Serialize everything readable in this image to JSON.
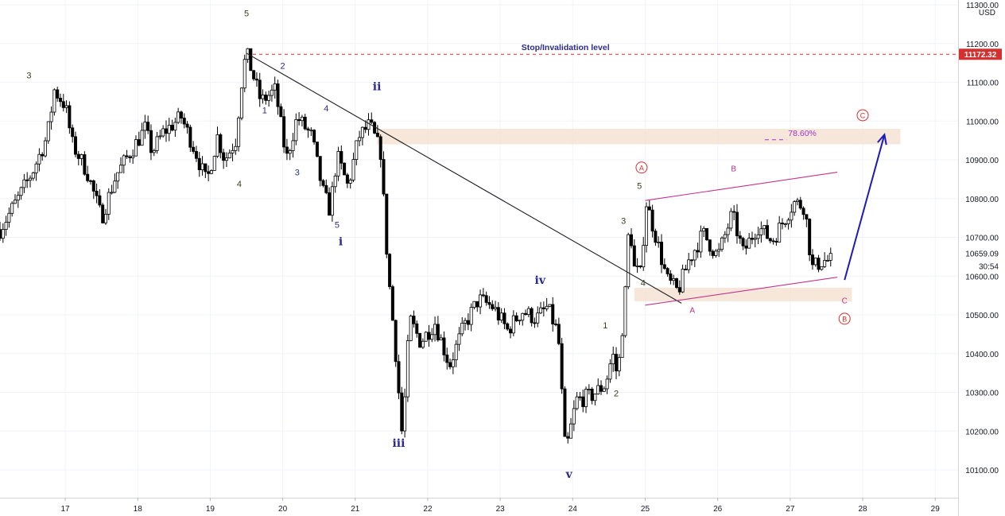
{
  "chart_data": {
    "type": "candlestick",
    "currency": "USD",
    "y_range": [
      10050,
      11300
    ],
    "y_ticks": [
      "10100.00",
      "10200.00",
      "10300.00",
      "10400.00",
      "10500.00",
      "10600.00",
      "10700.00",
      "10800.00",
      "10900.00",
      "11000.00",
      "11100.00",
      "11200.00",
      "11300.00"
    ],
    "x_ticks": [
      "17",
      "18",
      "19",
      "20",
      "21",
      "22",
      "23",
      "24",
      "25",
      "26",
      "27",
      "28",
      "29"
    ],
    "x_range": [
      16.1,
      29.25
    ],
    "last_price": {
      "label": "10659.09",
      "countdown": "30:54",
      "value": 10659
    },
    "stop_level": {
      "label": "11172.32",
      "value": 11172.32,
      "text": "Stop/Invalidation level",
      "color": "#d62f2f"
    },
    "fib": {
      "label": "78.60%",
      "zone": [
        10940,
        10980
      ],
      "color": "#a231c9"
    },
    "zone_low": [
      10535,
      10570
    ],
    "anchors": [
      [
        16.1,
        10720
      ],
      [
        16.35,
        10800
      ],
      [
        16.55,
        10870
      ],
      [
        16.75,
        10960
      ],
      [
        16.85,
        11080
      ],
      [
        17.0,
        11040
      ],
      [
        17.1,
        10940
      ],
      [
        17.3,
        10870
      ],
      [
        17.5,
        10750
      ],
      [
        17.7,
        10860
      ],
      [
        17.9,
        10920
      ],
      [
        18.1,
        10980
      ],
      [
        18.2,
        10920
      ],
      [
        18.35,
        10970
      ],
      [
        18.6,
        11010
      ],
      [
        18.8,
        10920
      ],
      [
        18.95,
        10840
      ],
      [
        19.1,
        10960
      ],
      [
        19.2,
        10900
      ],
      [
        19.35,
        10950
      ],
      [
        19.45,
        11130
      ],
      [
        19.5,
        11175
      ],
      [
        19.7,
        11050
      ],
      [
        19.9,
        11080
      ],
      [
        20.05,
        10900
      ],
      [
        20.2,
        11010
      ],
      [
        20.4,
        10960
      ],
      [
        20.55,
        10820
      ],
      [
        20.65,
        10770
      ],
      [
        20.75,
        10910
      ],
      [
        20.9,
        10830
      ],
      [
        21.05,
        10960
      ],
      [
        21.2,
        10990
      ],
      [
        21.35,
        10920
      ],
      [
        21.45,
        10620
      ],
      [
        21.55,
        10420
      ],
      [
        21.65,
        10180
      ],
      [
        21.75,
        10490
      ],
      [
        21.9,
        10430
      ],
      [
        22.1,
        10480
      ],
      [
        22.3,
        10370
      ],
      [
        22.5,
        10470
      ],
      [
        22.7,
        10540
      ],
      [
        22.9,
        10520
      ],
      [
        23.1,
        10460
      ],
      [
        23.3,
        10510
      ],
      [
        23.5,
        10490
      ],
      [
        23.65,
        10520
      ],
      [
        23.8,
        10450
      ],
      [
        23.9,
        10140
      ],
      [
        24.05,
        10280
      ],
      [
        24.25,
        10290
      ],
      [
        24.45,
        10320
      ],
      [
        24.55,
        10400
      ],
      [
        24.62,
        10340
      ],
      [
        24.72,
        10540
      ],
      [
        24.78,
        10745
      ],
      [
        24.85,
        10620
      ],
      [
        24.95,
        10600
      ],
      [
        25.0,
        10800
      ],
      [
        25.15,
        10700
      ],
      [
        25.3,
        10590
      ],
      [
        25.45,
        10560
      ],
      [
        25.6,
        10640
      ],
      [
        25.8,
        10710
      ],
      [
        26.0,
        10650
      ],
      [
        26.2,
        10760
      ],
      [
        26.35,
        10660
      ],
      [
        26.55,
        10730
      ],
      [
        26.75,
        10690
      ],
      [
        26.9,
        10740
      ],
      [
        27.05,
        10790
      ],
      [
        27.2,
        10780
      ],
      [
        27.3,
        10620
      ],
      [
        27.45,
        10640
      ],
      [
        27.55,
        10640
      ]
    ],
    "trendline": [
      [
        19.5,
        11175
      ],
      [
        25.5,
        10530
      ]
    ],
    "channel_upper": [
      [
        25.0,
        10795
      ],
      [
        27.65,
        10868
      ]
    ],
    "channel_lower": [
      [
        25.0,
        10525
      ],
      [
        27.65,
        10597
      ]
    ],
    "projection_arrow": [
      [
        27.75,
        10590
      ],
      [
        28.3,
        10965
      ]
    ],
    "wave_labels": [
      {
        "text": "5",
        "x": 19.5,
        "y": 11270,
        "color": "#3d3d1f",
        "size": 11
      },
      {
        "text": "3",
        "x": 16.5,
        "y": 11110,
        "color": "#3d3d1f",
        "size": 11
      },
      {
        "text": "4",
        "x": 19.4,
        "y": 10830,
        "color": "#3d3d1f",
        "size": 11
      },
      {
        "text": "2",
        "x": 20.0,
        "y": 11135,
        "color": "#2b2b8c",
        "size": 11
      },
      {
        "text": "1",
        "x": 19.75,
        "y": 11020,
        "color": "#2b2b8c",
        "size": 11
      },
      {
        "text": "4",
        "x": 20.6,
        "y": 11025,
        "color": "#2b2b8c",
        "size": 11
      },
      {
        "text": "3",
        "x": 20.2,
        "y": 10860,
        "color": "#2b2b8c",
        "size": 11
      },
      {
        "text": "5",
        "x": 20.75,
        "y": 10725,
        "color": "#2b2b8c",
        "size": 11
      },
      {
        "text": "i",
        "x": 20.8,
        "y": 10680,
        "color": "#2b2b8c",
        "size": 14
      },
      {
        "text": "ii",
        "x": 21.3,
        "y": 11080,
        "color": "#2b2b8c",
        "size": 14
      },
      {
        "text": "iii",
        "x": 21.6,
        "y": 10160,
        "color": "#2b2b8c",
        "size": 14
      },
      {
        "text": "iv",
        "x": 23.55,
        "y": 10580,
        "color": "#2b2b8c",
        "size": 14
      },
      {
        "text": "v",
        "x": 23.95,
        "y": 10080,
        "color": "#2b2b8c",
        "size": 14
      },
      {
        "text": "1",
        "x": 24.45,
        "y": 10465,
        "color": "#3d3d1f",
        "size": 11
      },
      {
        "text": "2",
        "x": 24.6,
        "y": 10290,
        "color": "#3d3d1f",
        "size": 11
      },
      {
        "text": "3",
        "x": 24.7,
        "y": 10735,
        "color": "#3d3d1f",
        "size": 11
      },
      {
        "text": "4",
        "x": 24.97,
        "y": 10575,
        "color": "#3d3d1f",
        "size": 11
      },
      {
        "text": "5",
        "x": 24.92,
        "y": 10825,
        "color": "#3d3d1f",
        "size": 11
      },
      {
        "text": "A",
        "x": 25.65,
        "y": 10505,
        "color": "#b5338a",
        "size": 10
      },
      {
        "text": "B",
        "x": 26.22,
        "y": 10870,
        "color": "#b5338a",
        "size": 10
      },
      {
        "text": "C",
        "x": 27.75,
        "y": 10530,
        "color": "#b5338a",
        "size": 10
      }
    ],
    "circle_labels": [
      {
        "text": "A",
        "x": 24.95,
        "y": 10880,
        "color": "#d62f2f"
      },
      {
        "text": "B",
        "x": 27.75,
        "y": 10490,
        "color": "#d62f2f"
      },
      {
        "text": "C",
        "x": 28.0,
        "y": 11015,
        "color": "#d62f2f"
      }
    ]
  }
}
